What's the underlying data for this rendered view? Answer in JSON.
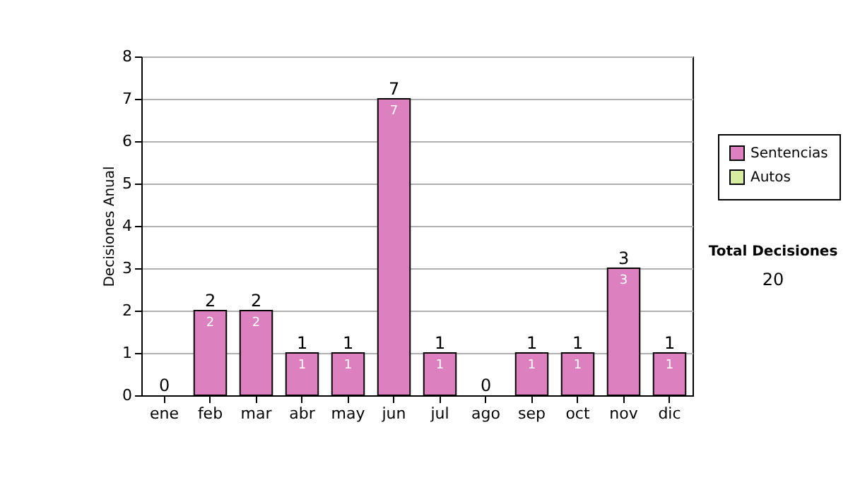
{
  "chart_data": {
    "type": "bar",
    "stacked": true,
    "ylabel": "Decisiones Anual",
    "categories": [
      "ene",
      "feb",
      "mar",
      "abr",
      "may",
      "jun",
      "jul",
      "ago",
      "sep",
      "oct",
      "nov",
      "dic"
    ],
    "series": [
      {
        "name": "Sentencias",
        "color": "#dd80c0",
        "values": [
          0,
          2,
          2,
          1,
          1,
          7,
          1,
          0,
          1,
          1,
          3,
          1
        ],
        "value_labels": [
          null,
          "2",
          "2",
          "1",
          "1",
          "7",
          "1",
          null,
          "1",
          "1",
          "3",
          "1"
        ]
      },
      {
        "name": "Autos",
        "color": "#d8eca0",
        "values": [
          0,
          0,
          0,
          0,
          0,
          0,
          0,
          0,
          0,
          0,
          0,
          0
        ]
      }
    ],
    "totals": [
      "0",
      "2",
      "2",
      "1",
      "1",
      "7",
      "1",
      "0",
      "1",
      "1",
      "3",
      "1"
    ],
    "ylim": [
      0,
      8
    ],
    "yticks": [
      0,
      1,
      2,
      3,
      4,
      5,
      6,
      7,
      8
    ],
    "grid": "y",
    "legend": "right",
    "annotations": [
      "Total Decisiones",
      "20"
    ]
  }
}
